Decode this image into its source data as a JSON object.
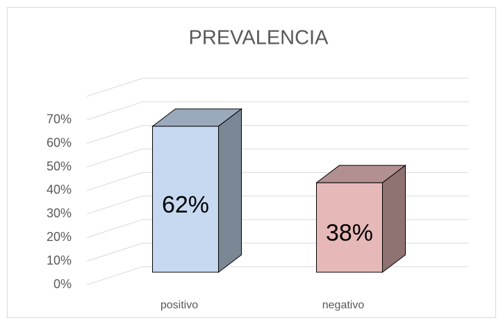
{
  "chart_data": {
    "type": "bar3d",
    "title": "PREVALENCIA",
    "categories": [
      "positivo",
      "negativo"
    ],
    "values": [
      62,
      38
    ],
    "value_labels": [
      "62%",
      "38%"
    ],
    "colors": [
      "#c6d9f1",
      "#e6b9b8"
    ],
    "ylim": [
      0,
      80
    ],
    "yticks": [
      {
        "value": 0,
        "label": "0%"
      },
      {
        "value": 10,
        "label": "10%"
      },
      {
        "value": 20,
        "label": "20%"
      },
      {
        "value": 30,
        "label": "30%"
      },
      {
        "value": 40,
        "label": "40%"
      },
      {
        "value": 50,
        "label": "50%"
      },
      {
        "value": 60,
        "label": "60%"
      },
      {
        "value": 70,
        "label": "70%"
      }
    ],
    "grid": true
  }
}
